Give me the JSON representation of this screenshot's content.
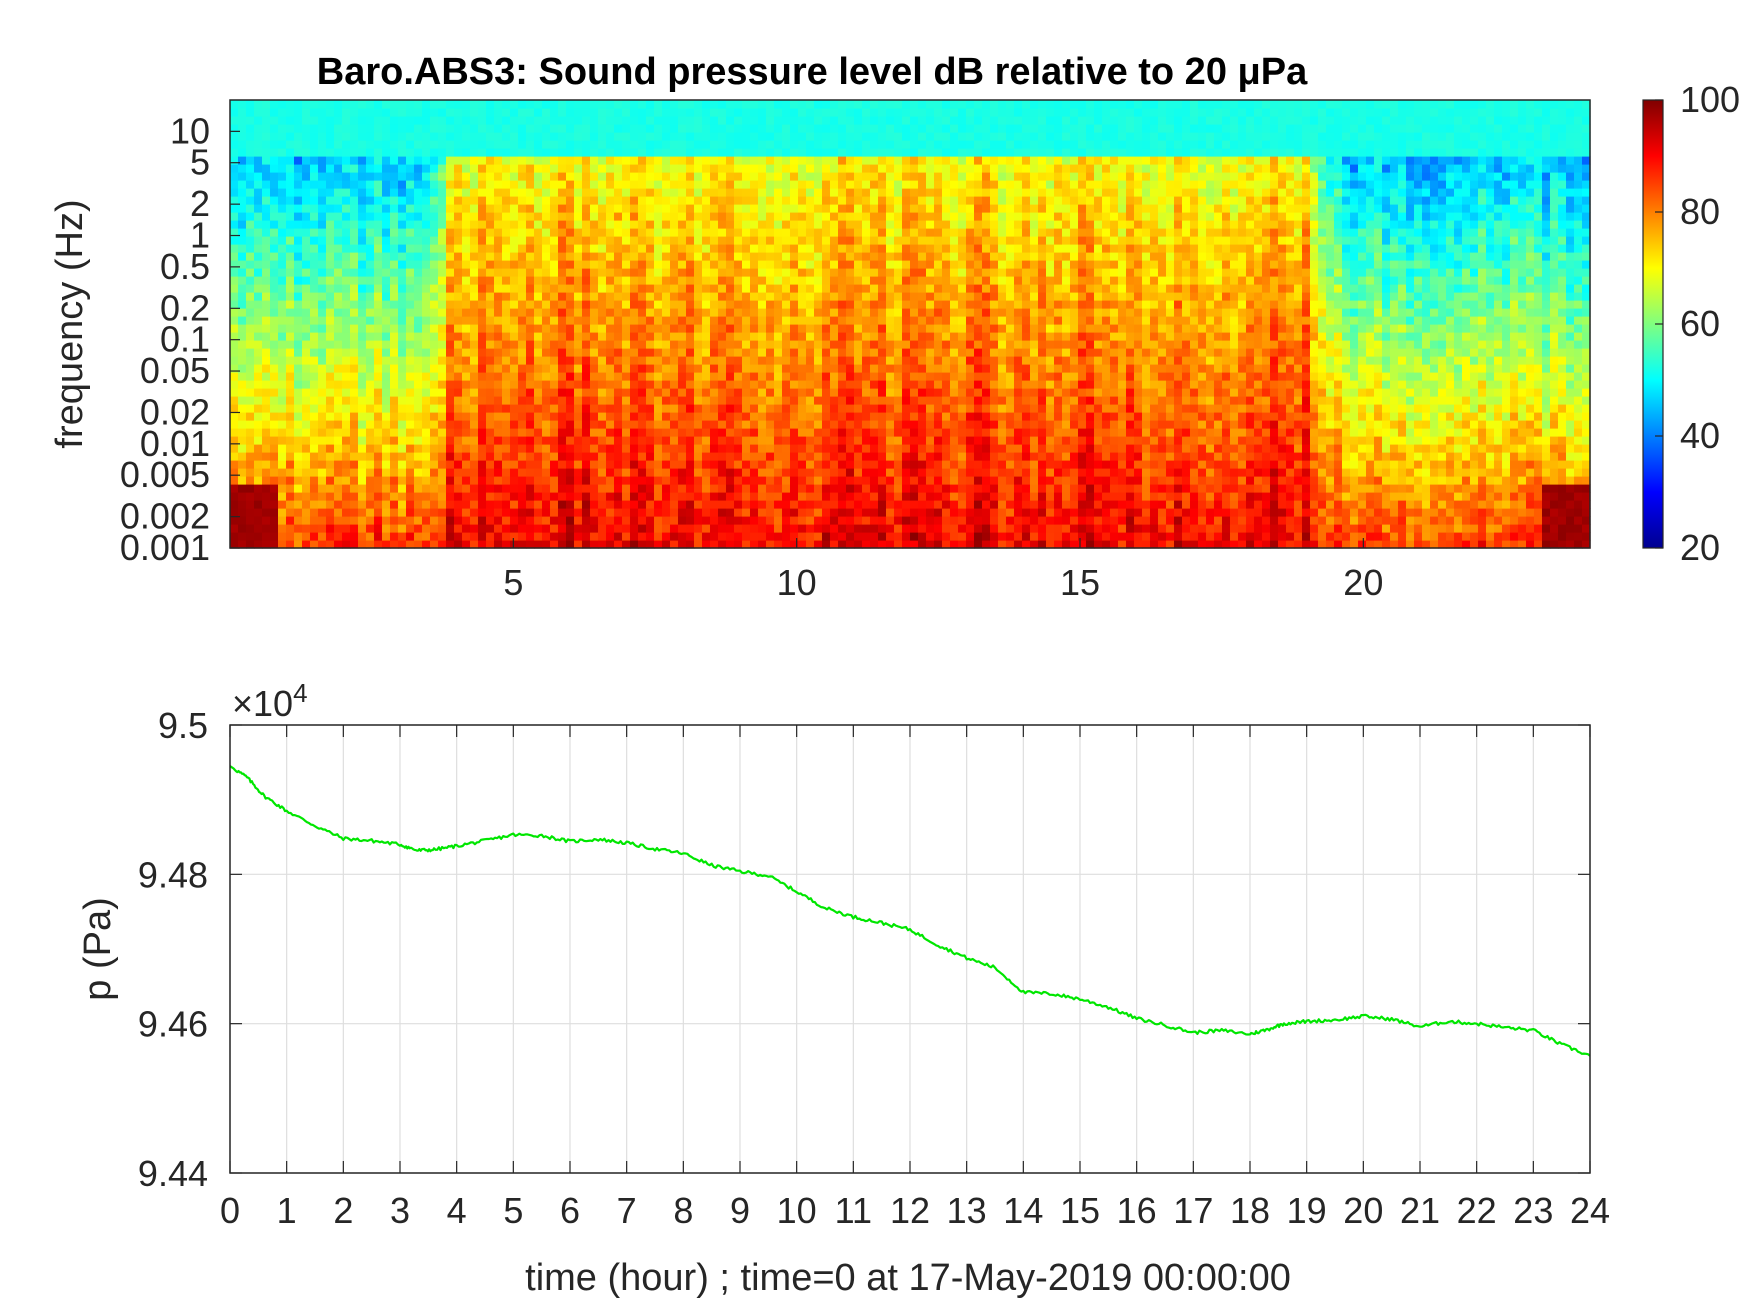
{
  "chart_data": [
    {
      "type": "heatmap",
      "title": "Baro.ABS3: Sound pressure level dB relative to 20 μPa",
      "ylabel": "frequency (Hz)",
      "yscale": "log",
      "ylim": [
        0.001,
        20
      ],
      "xlim": [
        0,
        24
      ],
      "xticks": [
        5,
        10,
        15,
        20
      ],
      "yticks": [
        {
          "label": "10",
          "value": 10
        },
        {
          "label": "5",
          "value": 5
        },
        {
          "label": "2",
          "value": 2
        },
        {
          "label": "1",
          "value": 1
        },
        {
          "label": "0.5",
          "value": 0.5
        },
        {
          "label": "0.2",
          "value": 0.2
        },
        {
          "label": "0.1",
          "value": 0.1
        },
        {
          "label": "0.05",
          "value": 0.05
        },
        {
          "label": "0.02",
          "value": 0.02
        },
        {
          "label": "0.01",
          "value": 0.01
        },
        {
          "label": "0.005",
          "value": 0.005
        },
        {
          "label": "0.002",
          "value": 0.002
        },
        {
          "label": "0.001",
          "value": 0.001
        }
      ],
      "colormap": "jet",
      "colorbar": {
        "min": 20,
        "max": 100,
        "ticks": [
          100,
          80,
          60,
          40,
          20
        ]
      },
      "loud_hours": [
        4,
        19
      ],
      "quiet_upper_dB": 45,
      "loud_upper_dB": 70,
      "low_freq_dB": 90
    },
    {
      "type": "line",
      "xlabel": "time (hour) ; time=0 at 17-May-2019 00:00:00",
      "ylabel": "p (Pa)",
      "exponent_label": "×10",
      "exponent_power": "4",
      "xlim": [
        0,
        24
      ],
      "ylim": [
        9.44,
        9.5
      ],
      "xticks": [
        "0",
        "1",
        "2",
        "3",
        "4",
        "5",
        "6",
        "7",
        "8",
        "9",
        "10",
        "11",
        "12",
        "13",
        "14",
        "15",
        "16",
        "17",
        "18",
        "19",
        "20",
        "21",
        "22",
        "23",
        "24"
      ],
      "yticks": [
        "9.5",
        "9.48",
        "9.46",
        "9.44"
      ],
      "grid": true,
      "series": [
        {
          "color": "#00e600",
          "x": [
            0,
            0.3,
            0.6,
            1,
            1.5,
            2,
            2.5,
            3,
            3.3,
            3.6,
            4,
            4.5,
            5,
            5.5,
            6,
            6.5,
            7,
            7.5,
            8,
            8.5,
            9,
            9.5,
            10,
            10.5,
            11,
            11.5,
            12,
            12.5,
            13,
            13.5,
            14,
            14.5,
            15,
            15.5,
            16,
            16.5,
            17,
            17.5,
            18,
            18.3,
            18.6,
            19,
            19.5,
            20,
            20.5,
            21,
            21.5,
            22,
            22.5,
            23,
            23.5,
            24
          ],
          "y": [
            9.4945,
            9.493,
            9.4905,
            9.4885,
            9.4865,
            9.4848,
            9.4845,
            9.484,
            9.4832,
            9.4833,
            9.4838,
            9.4845,
            9.4853,
            9.4852,
            9.4844,
            9.4847,
            9.4842,
            9.4834,
            9.4828,
            9.4812,
            9.4804,
            9.4798,
            9.4777,
            9.4755,
            9.4743,
            9.4735,
            9.4726,
            9.4705,
            9.4688,
            9.4675,
            9.4642,
            9.464,
            9.4633,
            9.4622,
            9.4607,
            9.4598,
            9.4588,
            9.4591,
            9.4586,
            9.4592,
            9.46,
            9.4603,
            9.4605,
            9.461,
            9.4606,
            9.4596,
            9.4603,
            9.46,
            9.4595,
            9.4591,
            9.4572,
            9.4557
          ]
        }
      ]
    }
  ]
}
